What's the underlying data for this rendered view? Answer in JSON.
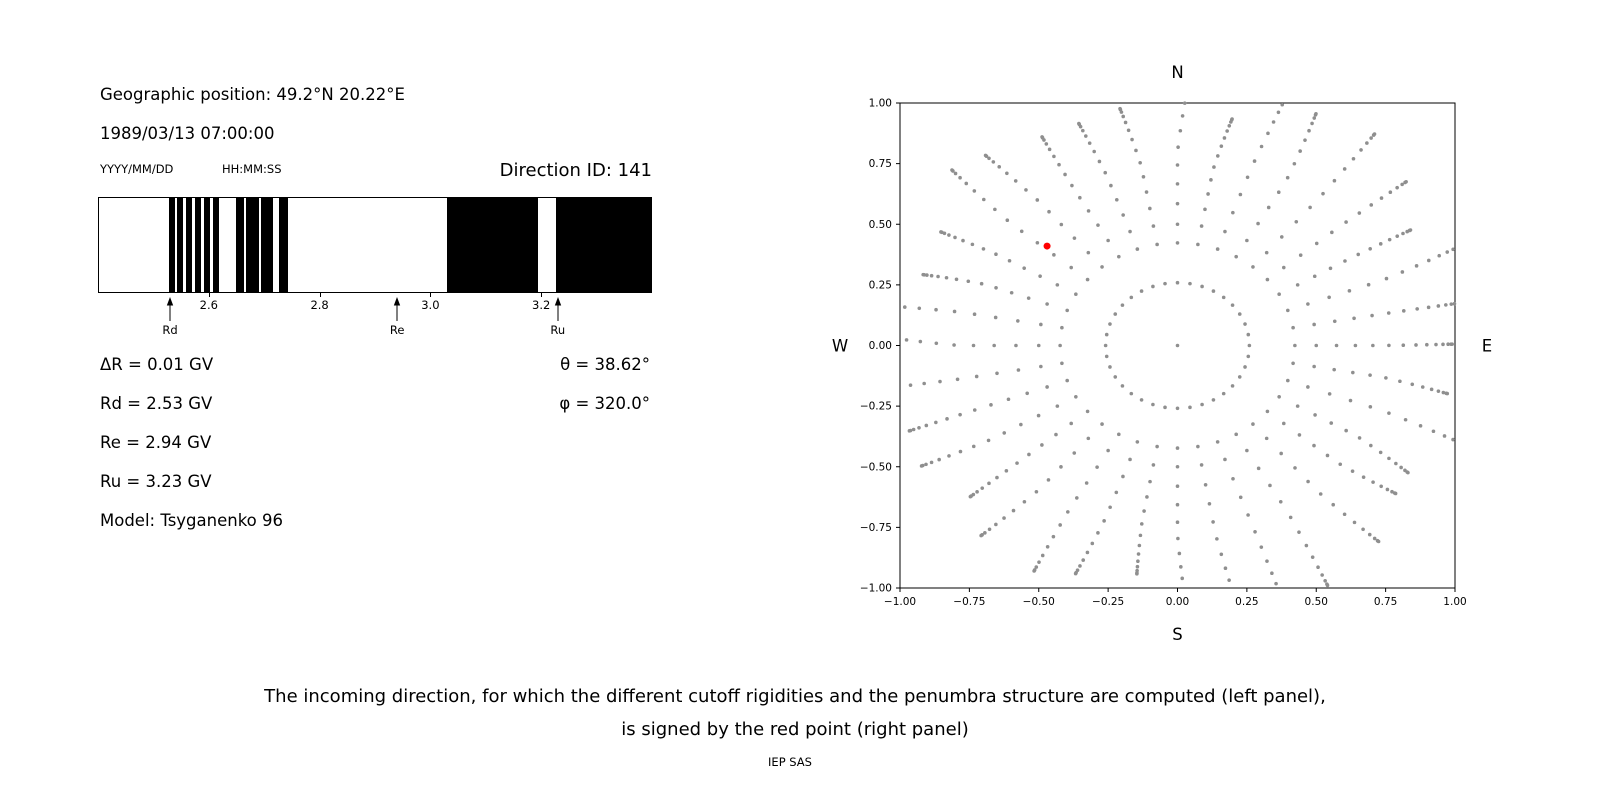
{
  "header": {
    "geo_label": "Geographic position: 49.2°N 20.22°E",
    "datetime": "1989/03/13 07:00:00",
    "date_format": "YYYY/MM/DD",
    "time_format": "HH:MM:SS",
    "direction_id": "Direction ID: 141"
  },
  "left_panel": {
    "delta_r": "ΔR = 0.01 GV",
    "rd": "Rd = 2.53 GV",
    "re": "Re = 2.94 GV",
    "ru": "Ru = 3.23 GV",
    "model": "Model: Tsyganenko 96",
    "theta": "θ = 38.62°",
    "phi": "φ = 320.0°"
  },
  "caption": {
    "line1": "The incoming direction, for which the different cutoff rigidities and the penumbra structure are computed (left panel),",
    "line2": "is signed by the red point (right panel)",
    "credit": "IEP SAS"
  },
  "chart_data": [
    {
      "type": "bar",
      "subtype": "penumbra-structure",
      "title": "",
      "xlabel": "",
      "ylabel": "",
      "xlim": [
        2.4,
        3.4
      ],
      "xticks": [
        2.6,
        2.8,
        3.0,
        3.2
      ],
      "bar_color": "#000000",
      "allowed_bands_gv": [
        [
          2.526,
          2.537
        ],
        [
          2.542,
          2.553
        ],
        [
          2.558,
          2.569
        ],
        [
          2.574,
          2.585
        ],
        [
          2.59,
          2.601
        ],
        [
          2.606,
          2.617
        ],
        [
          2.648,
          2.663
        ],
        [
          2.667,
          2.69
        ],
        [
          2.694,
          2.716
        ],
        [
          2.726,
          2.742
        ],
        [
          3.031,
          3.195
        ],
        [
          3.228,
          3.4
        ]
      ],
      "cutoff_markers": [
        {
          "label": "Rd",
          "value": 2.53
        },
        {
          "label": "Re",
          "value": 2.94
        },
        {
          "label": "Ru",
          "value": 3.23
        }
      ]
    },
    {
      "type": "scatter",
      "title": "",
      "xlabel": "",
      "ylabel": "",
      "xlim": [
        -1.0,
        1.0
      ],
      "ylim": [
        -1.0,
        1.0
      ],
      "xticks": [
        -1.0,
        -0.75,
        -0.5,
        -0.25,
        0.0,
        0.25,
        0.5,
        0.75,
        1.0
      ],
      "yticks": [
        -1.0,
        -0.75,
        -0.5,
        -0.25,
        0.0,
        0.25,
        0.5,
        0.75,
        1.0
      ],
      "compass": {
        "top": "N",
        "bottom": "S",
        "left": "W",
        "right": "E"
      },
      "grid_dots": {
        "azimuth_count": 36,
        "azimuth_step_deg": 10,
        "radii": [
          0.259,
          0.423,
          0.5,
          0.574,
          0.643,
          0.707,
          0.766,
          0.819,
          0.866,
          0.906,
          0.94,
          0.966,
          0.985,
          0.996,
          1.0
        ],
        "center_dot": true,
        "color": "#8f8f8f"
      },
      "red_point": {
        "x": -0.47,
        "y": 0.41,
        "color": "#ff0000"
      }
    }
  ]
}
